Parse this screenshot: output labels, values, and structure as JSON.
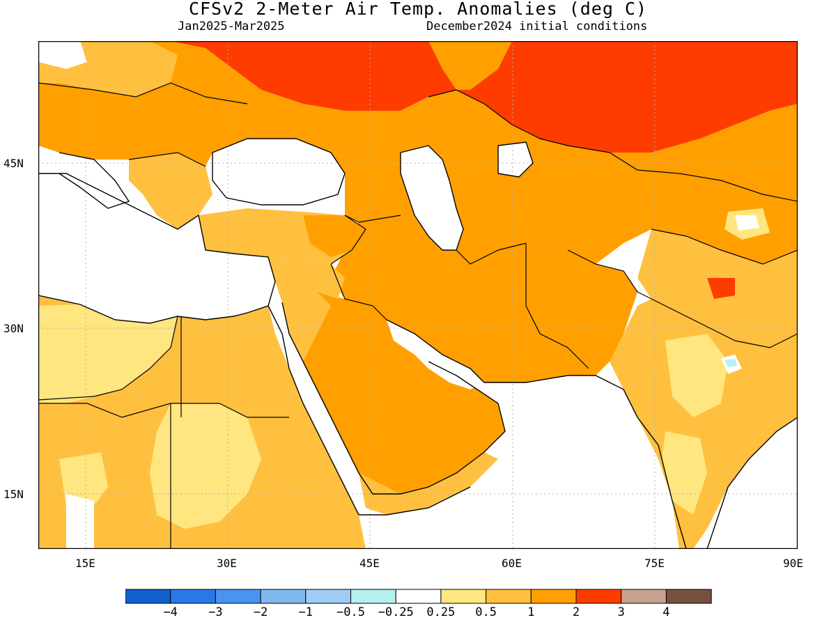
{
  "header": {
    "title": "CFSv2 2-Meter Air Temp. Anomalies (deg C)",
    "period": "Jan2025-Mar2025",
    "init": "December2024 initial conditions"
  },
  "axes": {
    "lon_ticks": [
      "15E",
      "30E",
      "45E",
      "60E",
      "75E",
      "90E"
    ],
    "lat_ticks": [
      "45N",
      "30N",
      "15N"
    ],
    "lon_range": [
      10,
      90
    ],
    "lat_range": [
      10,
      57
    ]
  },
  "legend": {
    "labels": [
      "-4",
      "-3",
      "-2",
      "-1",
      "-0.5",
      "-0.25",
      "0.25",
      "0.5",
      "1",
      "2",
      "3",
      "4"
    ],
    "colors": [
      "#1060d0",
      "#2a78e8",
      "#4a94f0",
      "#80b8f0",
      "#a0ccf4",
      "#b4f0f0",
      "#ffffff",
      "#ffe680",
      "#ffc040",
      "#ffa000",
      "#ff3c00",
      "#c8a090",
      "#785040"
    ]
  },
  "colors": {
    "land_mid": "#ffc040",
    "land_warm": "#ffa000",
    "land_hot": "#ff3c00",
    "land_mild": "#ffe680",
    "sea": "#ffffff",
    "grid": "#b0b0b0"
  }
}
